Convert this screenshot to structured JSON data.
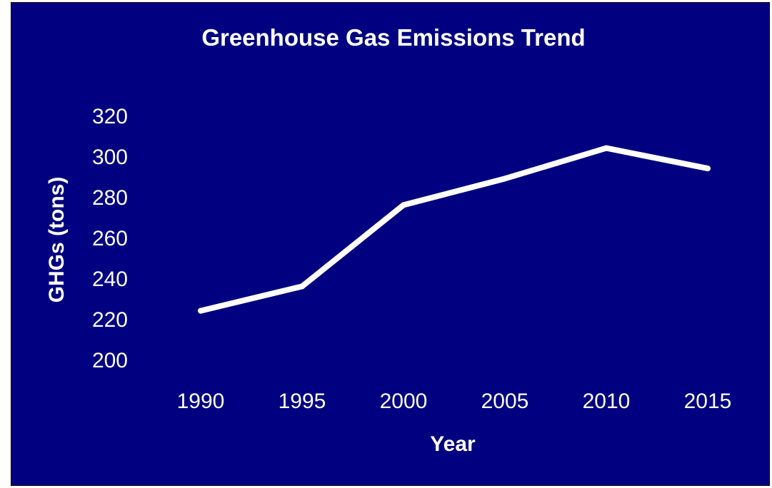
{
  "chart_data": {
    "type": "line",
    "title": "Greenhouse Gas Emissions Trend",
    "xlabel": "Year",
    "ylabel": "GHGs (tons)",
    "categories": [
      "1990",
      "1995",
      "2000",
      "2005",
      "2010",
      "2015"
    ],
    "y_ticks": [
      "200",
      "220",
      "240",
      "260",
      "280",
      "300",
      "320"
    ],
    "ylim": [
      200,
      320
    ],
    "grid": false,
    "legend": "none",
    "series": [
      {
        "values": [
          224,
          236,
          276,
          289,
          304,
          294
        ],
        "color": "#ffffff"
      }
    ],
    "colors": {
      "background": "#000080",
      "text": "#ffffff",
      "line": "#ffffff"
    }
  }
}
